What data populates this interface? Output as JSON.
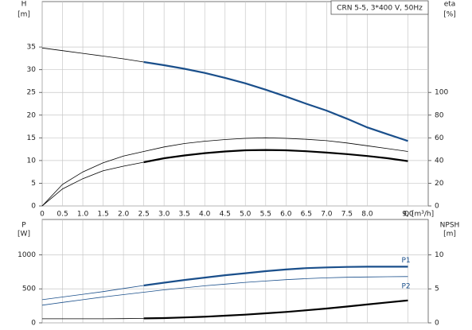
{
  "chart_data": [
    {
      "type": "line",
      "title": "CRN 5-5, 3*400 V, 50Hz",
      "x_label": "Q [m³/h]",
      "y_label": "H",
      "y_unit": "[m]",
      "y2_label": "eta",
      "y2_unit": "[%]",
      "x": [
        0,
        0.5,
        1,
        1.5,
        2,
        2.5,
        3,
        3.5,
        4,
        4.5,
        5,
        5.5,
        6,
        6.5,
        7,
        7.5,
        8,
        8.5,
        9
      ],
      "xlim": [
        0,
        9.5
      ],
      "ylim": [
        0,
        45
      ],
      "y2lim": [
        0,
        180
      ],
      "xticks": [
        0,
        0.5,
        {
          "value": 1,
          "label": "1.0"
        },
        1.5,
        {
          "value": 2,
          "label": "2.0"
        },
        2.5,
        {
          "value": 3,
          "label": "3.0"
        },
        3.5,
        {
          "value": 4,
          "label": "4.0"
        },
        4.5,
        {
          "value": 5,
          "label": "5.0"
        },
        5.5,
        {
          "value": 6,
          "label": "6.0"
        },
        6.5,
        {
          "value": 7,
          "label": "7.0"
        },
        7.5,
        {
          "value": 8,
          "label": "8.0"
        },
        {
          "value": 9,
          "label": "9.0"
        }
      ],
      "yticks": [
        0,
        5,
        10,
        15,
        20,
        25,
        30,
        35
      ],
      "y2ticks": [
        0,
        20,
        40,
        60,
        80,
        100
      ],
      "grid": true,
      "series": [
        {
          "color": "#000000",
          "width": 0.8,
          "axis": "y",
          "values": [
            34.8,
            34.2,
            33.6,
            33.0,
            32.4,
            31.7,
            null,
            null,
            null,
            null,
            null,
            null,
            null,
            null,
            null,
            null,
            null,
            null,
            null
          ]
        },
        {
          "color": "#1a4f8b",
          "width": 2.2,
          "axis": "y",
          "values": [
            null,
            null,
            null,
            null,
            null,
            31.7,
            31.0,
            30.2,
            29.3,
            28.2,
            27.0,
            25.6,
            24.1,
            22.5,
            21.0,
            19.2,
            17.3,
            15.8,
            14.3
          ]
        },
        {
          "color": "#000000",
          "width": 0.8,
          "axis": "y2",
          "values": [
            0,
            19,
            30,
            38,
            44,
            48,
            52,
            55,
            57,
            58.5,
            59.5,
            60,
            59.5,
            58.7,
            57.5,
            55.5,
            53,
            50.5,
            48
          ]
        },
        {
          "color": "#000000",
          "width": 0.8,
          "axis": "y2",
          "values": [
            0,
            15,
            24,
            31,
            35,
            38.5,
            null,
            null,
            null,
            null,
            null,
            null,
            null,
            null,
            null,
            null,
            null,
            null,
            null
          ]
        },
        {
          "color": "#000000",
          "width": 2.2,
          "axis": "y2",
          "values": [
            null,
            null,
            null,
            null,
            null,
            38.5,
            42,
            44.5,
            46.5,
            48,
            49,
            49.3,
            49,
            48.2,
            47,
            45.7,
            44,
            42,
            39.5
          ]
        }
      ]
    },
    {
      "type": "line",
      "y_label": "P",
      "y_unit": "[W]",
      "y2_label": "NPSH",
      "y2_unit": "[m]",
      "x": [
        0,
        0.5,
        1,
        1.5,
        2,
        2.5,
        3,
        3.5,
        4,
        4.5,
        5,
        5.5,
        6,
        6.5,
        7,
        7.5,
        8,
        8.5,
        9
      ],
      "xlim": [
        0,
        9.5
      ],
      "ylim": [
        0,
        1520
      ],
      "y2lim": [
        0,
        15.2
      ],
      "yticks": [
        0,
        500,
        1000
      ],
      "y2ticks": [
        0,
        5,
        10
      ],
      "grid": true,
      "series": [
        {
          "color": "#1a4f8b",
          "width": 0.8,
          "axis": "y",
          "values": [
            340,
            380,
            420,
            460,
            505,
            550,
            null,
            null,
            null,
            null,
            null,
            null,
            null,
            null,
            null,
            null,
            null,
            null,
            null
          ]
        },
        {
          "name": "P1",
          "color": "#1a4f8b",
          "width": 2.2,
          "axis": "y",
          "values": [
            null,
            null,
            null,
            null,
            null,
            550,
            590,
            630,
            665,
            700,
            730,
            760,
            785,
            805,
            815,
            822,
            825,
            825,
            825
          ]
        },
        {
          "name": "P2",
          "color": "#1a4f8b",
          "width": 0.8,
          "axis": "y",
          "values": [
            260,
            300,
            340,
            380,
            415,
            450,
            485,
            515,
            545,
            570,
            595,
            615,
            635,
            650,
            662,
            670,
            675,
            678,
            680
          ]
        },
        {
          "color": "#000000",
          "width": 0.8,
          "axis": "y2",
          "values": [
            0.6,
            0.6,
            0.6,
            0.6,
            0.62,
            0.65,
            null,
            null,
            null,
            null,
            null,
            null,
            null,
            null,
            null,
            null,
            null,
            null,
            null
          ]
        },
        {
          "color": "#000000",
          "width": 2.2,
          "axis": "y2",
          "values": [
            null,
            null,
            null,
            null,
            null,
            0.65,
            0.7,
            0.8,
            0.9,
            1.05,
            1.2,
            1.4,
            1.6,
            1.85,
            2.1,
            2.4,
            2.7,
            3.0,
            3.3
          ]
        }
      ]
    }
  ]
}
